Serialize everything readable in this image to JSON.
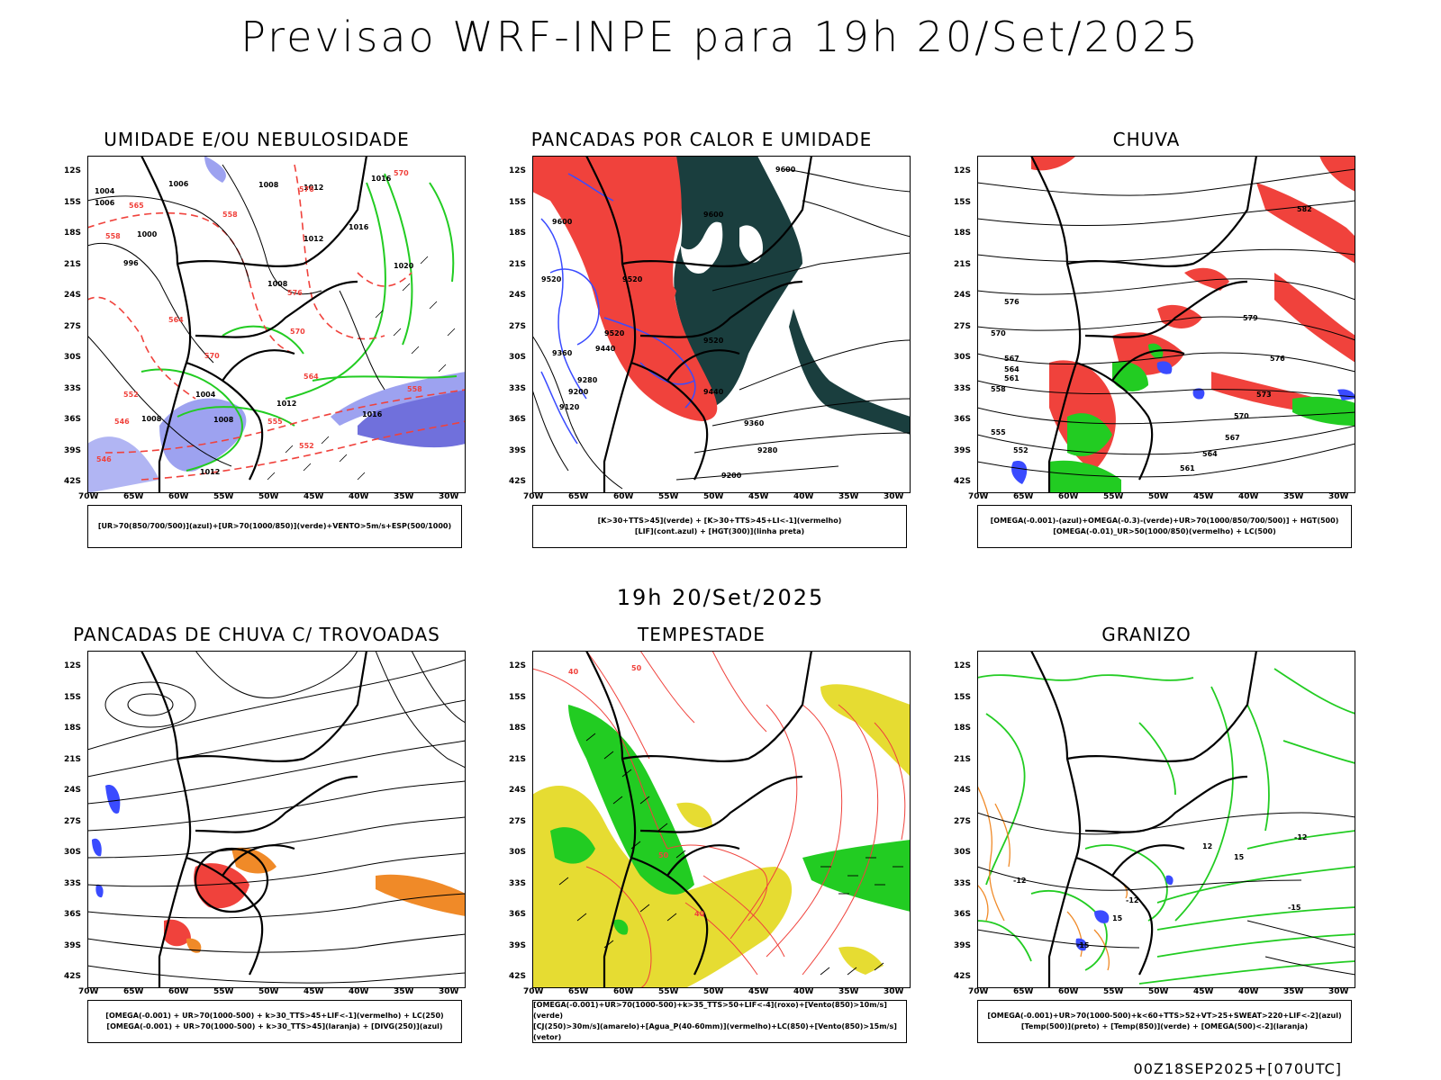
{
  "header": {
    "title": "Previsao WRF-INPE  para 19h 20/Set/2025"
  },
  "mid_date": "19h 20/Set/2025",
  "footer": "00Z18SEP2025+[070UTC]",
  "axes": {
    "lat_labels": [
      "12S",
      "15S",
      "18S",
      "21S",
      "24S",
      "27S",
      "30S",
      "33S",
      "36S",
      "39S",
      "42S"
    ],
    "lon_labels": [
      "70W",
      "65W",
      "60W",
      "55W",
      "50W",
      "45W",
      "40W",
      "35W",
      "30W"
    ]
  },
  "colors": {
    "red": "#f0423c",
    "green": "#22cc22",
    "blue": "#3a4bff",
    "darkteal": "#1a3e3e",
    "yellow": "#e6dc32",
    "orange": "#f08a28",
    "lavender": "#9da2f0",
    "violet": "#4040d0"
  },
  "panels": [
    {
      "id": "umidade",
      "title": "UMIDADE E/OU NEBULOSIDADE",
      "legend": [
        "[UR>70(850/700/500)](azul)+[UR>70(1000/850)](verde)+VENTO>5m/s+ESP(500/1000)"
      ],
      "contour_labels": [
        "1004",
        "1006",
        "1008",
        "1012",
        "1016",
        "1020",
        "1000",
        "996",
        "570",
        "576",
        "565",
        "555",
        "546",
        "552",
        "564",
        "558",
        "546"
      ]
    },
    {
      "id": "pancadas",
      "title": "PANCADAS POR CALOR E UMIDADE",
      "legend": [
        "[K>30+TTS>45](verde) + [K>30+TTS>45+LI<-1](vermelho)",
        "[LIF](cont.azul) + [HGT(300)](linha preta)"
      ],
      "contour_labels": [
        "9600",
        "9600",
        "9520",
        "9520",
        "9440",
        "9360",
        "9280",
        "9200",
        "9120",
        "9440",
        "9360",
        "9280",
        "9200",
        "9600",
        "9520"
      ]
    },
    {
      "id": "chuva",
      "title": "CHUVA",
      "legend": [
        "[OMEGA(-0.001)-(azul)+OMEGA(-0.3)-(verde)+UR>70(1000/850/700/500)] + HGT(500)",
        "[OMEGA(-0.01)_UR>50(1000/850)(vermelho) + LC(500)"
      ],
      "contour_labels": [
        "582",
        "579",
        "576",
        "573",
        "570",
        "567",
        "564",
        "561",
        "558",
        "555",
        "552",
        "582"
      ]
    },
    {
      "id": "trovoadas",
      "title": "PANCADAS DE CHUVA C/ TROVOADAS",
      "legend": [
        "[OMEGA(-0.001) + UR>70(1000-500) + k>30_TTS>45+LIF<-1](vermelho) + LC(250)",
        "[OMEGA(-0.001) + UR>70(1000-500) + k>30_TTS>45](laranja) + [DIVG(250)](azul)"
      ],
      "contour_labels": []
    },
    {
      "id": "tempestade",
      "title": "TEMPESTADE",
      "legend": [
        "[OMEGA(-0.001)+UR>70(1000-500)+k>35_TTS>50+LIF<-4](roxo)+[Vento(850)>10m/s](verde)",
        "[CJ(250)>30m/s](amarelo)+[Agua_P(40-60mm)](vermelho)+LC(850)+[Vento(850)>15m/s](vetor)"
      ],
      "contour_labels": [
        "40",
        "50",
        "50",
        "40"
      ]
    },
    {
      "id": "granizo",
      "title": "GRANIZO",
      "legend": [
        "[OMEGA(-0.001)+UR>70(1000-500)+k<60+TTS>52+VT>25+SWEAT>220+LIF<-2](azul)",
        "[Temp(500)](preto) + [Temp(850)](verde) + [OMEGA(500)<-2](laranja)"
      ],
      "contour_labels": [
        "-12",
        "-12",
        "-15",
        "15",
        "-15",
        "-12",
        "12",
        "15"
      ]
    }
  ]
}
